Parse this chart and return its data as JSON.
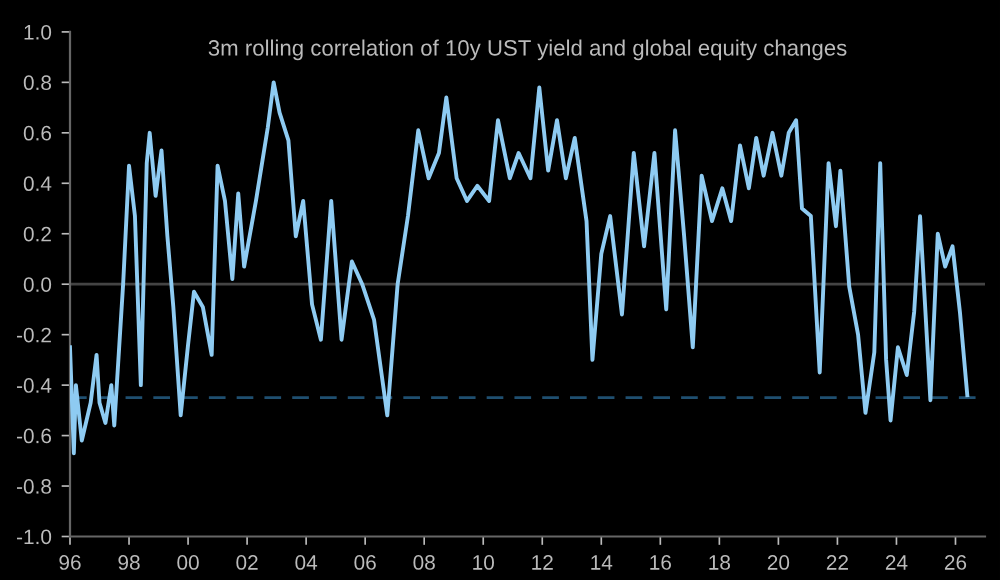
{
  "chart_data": {
    "type": "line",
    "title": "3m rolling correlation of 10y UST yield and global equity changes",
    "x": [
      1996.0,
      1996.13,
      1996.2,
      1996.4,
      1996.7,
      1996.9,
      1997.0,
      1997.2,
      1997.4,
      1997.5,
      1997.8,
      1998.0,
      1998.2,
      1998.4,
      1998.6,
      1998.7,
      1998.9,
      1999.1,
      1999.3,
      1999.5,
      1999.75,
      2000.0,
      2000.2,
      2000.5,
      2000.8,
      2001.0,
      2001.25,
      2001.5,
      2001.7,
      2001.9,
      2002.3,
      2002.7,
      2002.9,
      2003.1,
      2003.4,
      2003.65,
      2003.9,
      2004.2,
      2004.5,
      2004.85,
      2005.2,
      2005.55,
      2005.9,
      2006.3,
      2006.75,
      2007.1,
      2007.45,
      2007.8,
      2008.15,
      2008.5,
      2008.75,
      2009.1,
      2009.45,
      2009.8,
      2010.2,
      2010.5,
      2010.9,
      2011.2,
      2011.6,
      2011.9,
      2012.2,
      2012.5,
      2012.8,
      2013.1,
      2013.5,
      2013.7,
      2014.0,
      2014.3,
      2014.7,
      2015.1,
      2015.45,
      2015.8,
      2016.2,
      2016.5,
      2016.8,
      2017.1,
      2017.4,
      2017.75,
      2018.1,
      2018.4,
      2018.7,
      2019.0,
      2019.25,
      2019.5,
      2019.8,
      2020.1,
      2020.35,
      2020.6,
      2020.8,
      2021.1,
      2021.4,
      2021.7,
      2021.95,
      2022.1,
      2022.4,
      2022.7,
      2022.95,
      2023.25,
      2023.45,
      2023.65,
      2023.8,
      2024.05,
      2024.35,
      2024.6,
      2024.8,
      2025.15,
      2025.4,
      2025.65,
      2025.9,
      2026.15,
      2026.4
    ],
    "series": [
      {
        "color": "#8ecbf2",
        "values": [
          -0.25,
          -0.67,
          -0.4,
          -0.62,
          -0.47,
          -0.28,
          -0.47,
          -0.55,
          -0.4,
          -0.56,
          0.0,
          0.47,
          0.27,
          -0.4,
          0.48,
          0.6,
          0.35,
          0.53,
          0.19,
          -0.09,
          -0.52,
          -0.24,
          -0.03,
          -0.09,
          -0.28,
          0.47,
          0.33,
          0.02,
          0.36,
          0.07,
          0.33,
          0.62,
          0.8,
          0.68,
          0.57,
          0.19,
          0.33,
          -0.08,
          -0.22,
          0.33,
          -0.22,
          0.09,
          0.0,
          -0.14,
          -0.52,
          0.0,
          0.27,
          0.61,
          0.42,
          0.52,
          0.74,
          0.42,
          0.33,
          0.39,
          0.33,
          0.65,
          0.42,
          0.52,
          0.42,
          0.78,
          0.45,
          0.65,
          0.42,
          0.58,
          0.25,
          -0.3,
          0.12,
          0.27,
          -0.12,
          0.52,
          0.15,
          0.52,
          -0.1,
          0.61,
          0.2,
          -0.25,
          0.43,
          0.25,
          0.38,
          0.25,
          0.55,
          0.38,
          0.58,
          0.43,
          0.6,
          0.43,
          0.6,
          0.65,
          0.3,
          0.27,
          -0.35,
          0.48,
          0.23,
          0.45,
          -0.01,
          -0.2,
          -0.51,
          -0.27,
          0.48,
          -0.3,
          -0.54,
          -0.25,
          -0.36,
          -0.11,
          0.27,
          -0.46,
          0.2,
          0.07,
          0.15,
          -0.11,
          -0.44
        ]
      }
    ],
    "xlim": [
      1996,
      2027
    ],
    "xticks": [
      {
        "value": 1996,
        "label": "96"
      },
      {
        "value": 1998,
        "label": "98"
      },
      {
        "value": 2000,
        "label": "00"
      },
      {
        "value": 2002,
        "label": "02"
      },
      {
        "value": 2004,
        "label": "04"
      },
      {
        "value": 2006,
        "label": "06"
      },
      {
        "value": 2008,
        "label": "08"
      },
      {
        "value": 2010,
        "label": "10"
      },
      {
        "value": 2012,
        "label": "12"
      },
      {
        "value": 2014,
        "label": "14"
      },
      {
        "value": 2016,
        "label": "16"
      },
      {
        "value": 2018,
        "label": "18"
      },
      {
        "value": 2020,
        "label": "20"
      },
      {
        "value": 2022,
        "label": "22"
      },
      {
        "value": 2024,
        "label": "24"
      },
      {
        "value": 2026,
        "label": "26"
      }
    ],
    "ylim": [
      -1.0,
      1.0
    ],
    "yticks": [
      {
        "value": -1.0,
        "label": "-1.0"
      },
      {
        "value": -0.8,
        "label": "-0.8"
      },
      {
        "value": -0.6,
        "label": "-0.6"
      },
      {
        "value": -0.4,
        "label": "-0.4"
      },
      {
        "value": -0.2,
        "label": "-0.2"
      },
      {
        "value": 0.0,
        "label": "0.0"
      },
      {
        "value": 0.2,
        "label": "0.2"
      },
      {
        "value": 0.4,
        "label": "0.4"
      },
      {
        "value": 0.6,
        "label": "0.6"
      },
      {
        "value": 0.8,
        "label": "0.8"
      },
      {
        "value": 1.0,
        "label": "1.0"
      }
    ],
    "ref_lines": [
      {
        "axis": "y",
        "value": 0.0,
        "color": "#444444",
        "line_style": "solid"
      },
      {
        "axis": "y",
        "value": -0.45,
        "color": "#1f4f70",
        "line_style": "dashed"
      }
    ],
    "grid": false,
    "marker": "none",
    "line_style": "solid"
  }
}
